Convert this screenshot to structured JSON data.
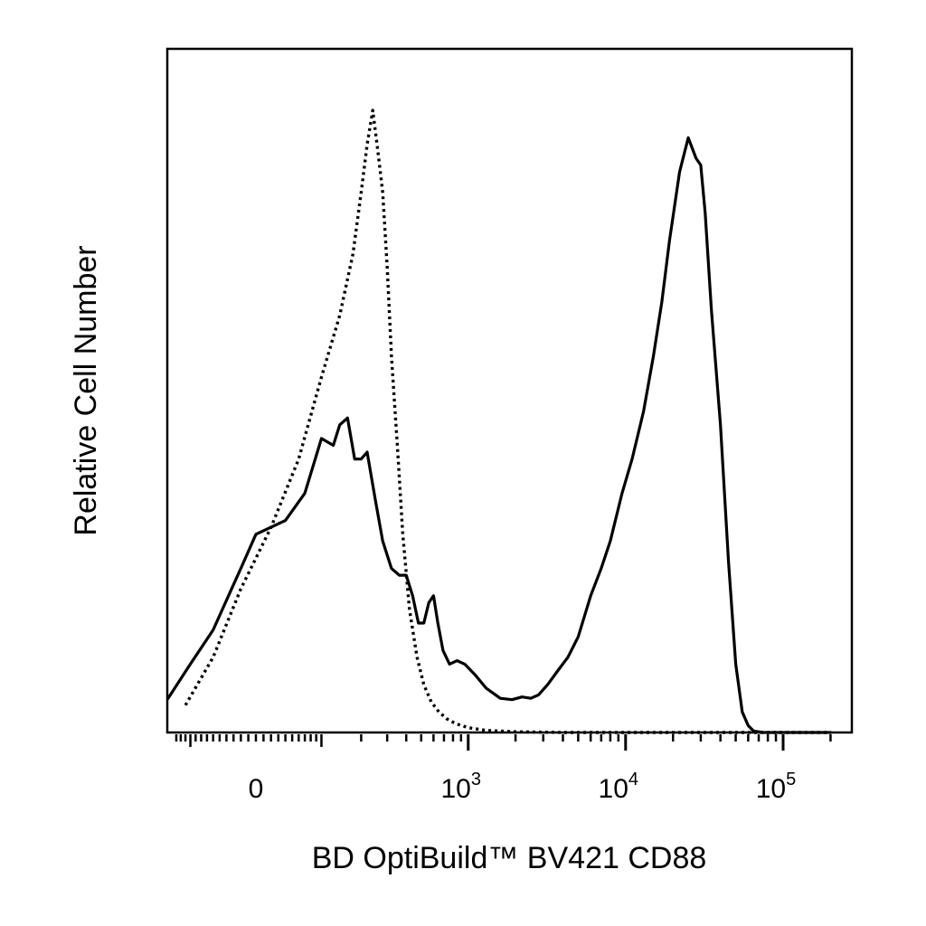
{
  "chart_data": {
    "type": "line",
    "title": "",
    "xlabel": "BD OptiBuild™ BV421 CD88",
    "ylabel": "Relative Cell Number",
    "x_scale": "biexponential",
    "xlim": [
      -300,
      200000
    ],
    "ylim": [
      0,
      100
    ],
    "grid": false,
    "legend": "none",
    "x_ticks": [
      {
        "value": 0,
        "base": "0",
        "exp": ""
      },
      {
        "value": 1000,
        "base": "10",
        "exp": "3"
      },
      {
        "value": 10000,
        "base": "10",
        "exp": "4"
      },
      {
        "value": 100000,
        "base": "10",
        "exp": "5"
      }
    ],
    "series": [
      {
        "style": "dotted",
        "color": "#000000",
        "x": [
          -300,
          -220,
          -160,
          -110,
          -60,
          -20,
          20,
          60,
          100,
          140,
          175,
          200,
          220,
          240,
          260,
          280,
          300,
          320,
          350,
          380,
          420,
          470,
          520,
          580,
          650,
          730,
          830,
          1000,
          1300,
          2000,
          4000,
          10000,
          30000,
          100000,
          200000
        ],
        "y": [
          0,
          0.3,
          1.5,
          4,
          11,
          21,
          30,
          40,
          52,
          61,
          70,
          79,
          86,
          91,
          85,
          79,
          68,
          55,
          42,
          29,
          18,
          11,
          7,
          4.5,
          3,
          2,
          1.3,
          0.7,
          0.3,
          0.1,
          0,
          0,
          0,
          0,
          0
        ]
      },
      {
        "style": "solid",
        "color": "#000000",
        "x": [
          -300,
          -250,
          -200,
          -150,
          -100,
          -60,
          -20,
          0,
          40,
          70,
          100,
          125,
          140,
          160,
          180,
          200,
          220,
          250,
          280,
          320,
          360,
          400,
          440,
          480,
          520,
          560,
          600,
          640,
          690,
          760,
          850,
          950,
          1100,
          1300,
          1600,
          1900,
          2200,
          2500,
          2800,
          3200,
          3700,
          4300,
          5000,
          6000,
          7000,
          8000,
          9500,
          11000,
          13000,
          15000,
          17000,
          19000,
          22000,
          25000,
          28000,
          30000,
          32000,
          35000,
          40000,
          45000,
          50000,
          55000,
          60000,
          65000,
          75000,
          100000,
          200000
        ],
        "y": [
          0,
          0.5,
          2,
          5,
          10,
          15,
          24,
          29,
          31,
          35,
          43,
          42,
          45,
          46,
          40,
          40,
          41,
          34,
          28,
          24,
          23,
          23,
          20,
          16,
          16,
          19,
          20,
          16,
          12,
          10,
          10.5,
          10,
          8.5,
          6.5,
          5,
          4.8,
          5.2,
          5,
          5.5,
          7,
          9,
          11,
          14,
          20,
          24,
          28,
          35,
          40,
          47,
          55,
          63,
          72,
          82,
          87,
          84,
          83,
          76,
          62,
          45,
          25,
          10,
          3,
          1,
          0.2,
          0,
          0,
          0
        ]
      }
    ]
  }
}
